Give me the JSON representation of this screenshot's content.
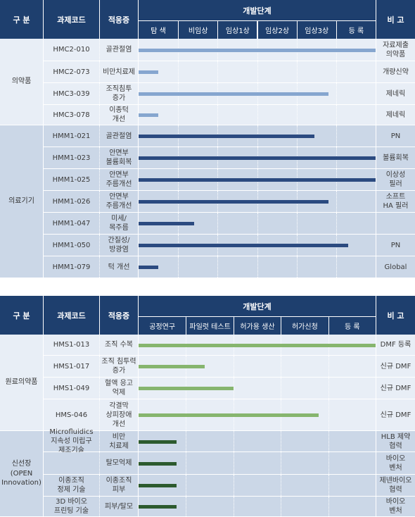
{
  "tables": [
    {
      "header": {
        "category": "구 분",
        "code": "과제코드",
        "indication": "적응증",
        "stage_title": "개발단계",
        "note": "비 고",
        "stages": [
          "탐 색",
          "비임상",
          "임상1상",
          "임상2상",
          "임상3상",
          "등 록"
        ]
      },
      "groups": [
        {
          "name": "의약품",
          "bg": "#e8eef6",
          "bar_color": "#86a6cf",
          "rows": [
            {
              "code": "HMC2-010",
              "indication": "골관절염",
              "progress": 6.0,
              "note": "자료제출\n의약품"
            },
            {
              "code": "HMC2-073",
              "indication": "비만치료제",
              "progress": 0.5,
              "note": "개량신약"
            },
            {
              "code": "HMC3-039",
              "indication": "조직침투\n증가",
              "progress": 4.8,
              "note": "제네릭"
            },
            {
              "code": "HMC3-078",
              "indication": "이종턱\n개선",
              "progress": 0.5,
              "note": "제네릭"
            }
          ]
        },
        {
          "name": "의료기기",
          "bg": "#cbd7e7",
          "bar_color": "#2b4a80",
          "rows": [
            {
              "code": "HMM1-021",
              "indication": "골관절염",
              "progress": 4.45,
              "note": "PN"
            },
            {
              "code": "HMM1-023",
              "indication": "안면부\n볼륨회복",
              "progress": 6.0,
              "note": "볼륨회복"
            },
            {
              "code": "HMM1-025",
              "indication": "안면부\n주름개선",
              "progress": 6.0,
              "note": "이상성\n필러"
            },
            {
              "code": "HMM1-026",
              "indication": "안면부\n주름개선",
              "progress": 4.8,
              "note": "소프트\nHA 필러"
            },
            {
              "code": "HMM1-047",
              "indication": "미세/\n목주름",
              "progress": 1.4,
              "note": ""
            },
            {
              "code": "HMM1-050",
              "indication": "간질성/\n방광염",
              "progress": 5.3,
              "note": "PN"
            },
            {
              "code": "HMM1-079",
              "indication": "턱 개선",
              "progress": 0.5,
              "note": "Global"
            }
          ]
        }
      ]
    },
    {
      "header": {
        "category": "구 분",
        "code": "과제코드",
        "indication": "적응증",
        "stage_title": "개발단계",
        "note": "비 고",
        "stages": [
          "공정연구",
          "파일럿 테스트",
          "허가용 생산",
          "허가신청",
          "등 록"
        ]
      },
      "groups": [
        {
          "name": "원료의약품",
          "bg": "#e8eef6",
          "bar_color": "#86b56e",
          "rows": [
            {
              "code": "HMS1-013",
              "indication": "조직 수복",
              "progress": 5.0,
              "note": "DMF 등록"
            },
            {
              "code": "HMS1-017",
              "indication": "조직 침투력\n증가",
              "progress": 1.4,
              "note": "신규 DMF"
            },
            {
              "code": "HMS1-049",
              "indication": "혈액 응고\n억제",
              "progress": 2.0,
              "note": "신규 DMF"
            },
            {
              "code": "HMS-046",
              "indication": "각결막\n상피장애\n개선",
              "progress": 3.8,
              "note": "신규 DMF"
            }
          ]
        },
        {
          "name": "신선장\n(OPEN\nInnovation)",
          "bg": "#cbd7e7",
          "bar_color": "#2c5a2e",
          "rows": [
            {
              "code": "Microfluidics\n지속성 미립구\n제조기술",
              "indication": "비만\n치료제",
              "progress": 0.8,
              "note": "HLB 제약\n협력"
            },
            {
              "code": "",
              "indication": "탈모억제",
              "progress": 0.8,
              "note": "바이오\n벤처"
            },
            {
              "code": "이종조직\n정제 기술",
              "indication": "이종조직\n피부",
              "progress": 0.8,
              "note": "제넨바이오\n협력"
            },
            {
              "code": "3D 바이오\n프린팅 기술",
              "indication": "피부/탈모",
              "progress": 0.8,
              "note": "바이오\n벤처"
            }
          ]
        }
      ]
    }
  ],
  "chart_data": [
    {
      "type": "bar",
      "orientation": "horizontal",
      "stages": [
        "탐 색",
        "비임상",
        "임상1상",
        "임상2상",
        "임상3상",
        "등 록"
      ],
      "categories": [
        "HMC2-010",
        "HMC2-073",
        "HMC3-039",
        "HMC3-078",
        "HMM1-021",
        "HMM1-023",
        "HMM1-025",
        "HMM1-026",
        "HMM1-047",
        "HMM1-050",
        "HMM1-079"
      ],
      "values": [
        6.0,
        0.5,
        4.8,
        0.5,
        4.45,
        6.0,
        6.0,
        4.8,
        1.4,
        5.3,
        0.5
      ],
      "value_unit": "stages completed (0–6)",
      "xlim": [
        0,
        6
      ],
      "grid": true
    },
    {
      "type": "bar",
      "orientation": "horizontal",
      "stages": [
        "공정연구",
        "파일럿 테스트",
        "허가용 생산",
        "허가신청",
        "등 록"
      ],
      "categories": [
        "HMS1-013",
        "HMS1-017",
        "HMS1-049",
        "HMS-046",
        "Microfluidics 지속성 미립구 제조기술",
        "탈모억제",
        "이종조직 정제 기술",
        "3D 바이오 프린팅 기술"
      ],
      "values": [
        5.0,
        1.4,
        2.0,
        3.8,
        0.8,
        0.8,
        0.8,
        0.8
      ],
      "value_unit": "stages completed (0–5)",
      "xlim": [
        0,
        5
      ],
      "grid": true
    }
  ]
}
